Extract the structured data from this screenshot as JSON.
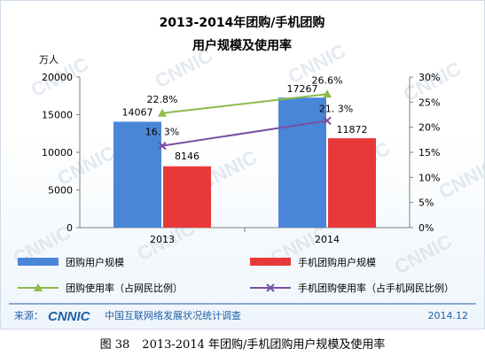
{
  "chart_data": {
    "type": "bar",
    "title_line1": "2013-2014年团购/手机团购",
    "title_line2": "用户规模及使用率",
    "ylabel_left": "万人",
    "categories": [
      "2013",
      "2014"
    ],
    "ylim_left": [
      0,
      20000
    ],
    "ylim_right": [
      0,
      30
    ],
    "left_ticks": [
      "0",
      "5000",
      "10000",
      "15000",
      "20000"
    ],
    "right_ticks": [
      "0%",
      "5%",
      "10%",
      "15%",
      "20%",
      "25%",
      "30%"
    ],
    "bar_series": [
      {
        "name": "团购用户规模",
        "values": [
          14067,
          17267
        ],
        "labels": [
          "14067",
          "17267"
        ],
        "color": "#4a86d8"
      },
      {
        "name": "手机团购用户规模",
        "values": [
          8146,
          11872
        ],
        "labels": [
          "8146",
          "11872"
        ],
        "color": "#e8393a"
      }
    ],
    "line_series": [
      {
        "name": "团购使用率（占网民比例）",
        "values": [
          22.8,
          26.6
        ],
        "labels": [
          "22.8%",
          "26.6%"
        ],
        "color": "#8dbb4a",
        "marker": "triangle"
      },
      {
        "name": "手机团购使用率（占手机网民比例）",
        "values": [
          16.3,
          21.3
        ],
        "labels": [
          "16. 3%",
          "21. 3%"
        ],
        "color": "#7a4fa3",
        "marker": "x"
      }
    ],
    "grid": false,
    "legend_position": "bottom"
  },
  "footer": {
    "source_label": "来源：",
    "logo_text": "CNNIC",
    "org": "中国互联网络发展状况统计调查",
    "date": "2014.12"
  },
  "caption": {
    "figure_number": "图 38",
    "text": "2013-2014 年团购/手机团购用户规模及使用率"
  },
  "watermark": {
    "text": "CNNIC"
  },
  "colors": {
    "accent_blue": "#1f5fa8",
    "footer_rule": "#1f5fa8"
  }
}
